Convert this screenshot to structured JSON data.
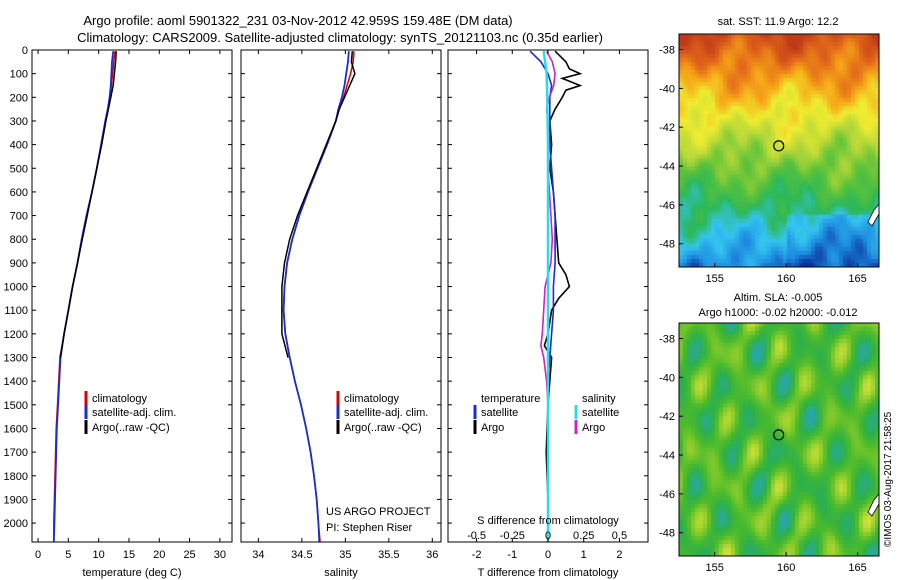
{
  "figure": {
    "title_line1": "Argo profile: aoml 5901322_231 03-Nov-2012 42.959S 159.48E (DM data)",
    "title_line2": "Climatology: CARS2009. Satellite-adjusted climatology: synTS_20121103.nc (0.35d earlier)",
    "side_stamp": "©IMOS 03-Aug-2017 21:58:25"
  },
  "colors": {
    "climatology": "#dd0000",
    "satellite": "#1a2bd8",
    "argo": "#000000",
    "salinity_satellite": "#22e0e8",
    "salinity_argo": "#d020c8"
  },
  "chart_data": [
    {
      "id": "temperature",
      "type": "line",
      "xlabel": "temperature (deg C)",
      "ylabel": "",
      "xlim": [
        -1,
        32
      ],
      "ylim": [
        2080,
        0
      ],
      "xticks": [
        0,
        5,
        10,
        15,
        20,
        25,
        30
      ],
      "yticks": [
        0,
        100,
        200,
        300,
        400,
        500,
        600,
        700,
        800,
        900,
        1000,
        1100,
        1200,
        1300,
        1400,
        1500,
        1600,
        1700,
        1800,
        1900,
        2000
      ],
      "depth": [
        5,
        50,
        100,
        150,
        200,
        250,
        300,
        400,
        500,
        600,
        700,
        800,
        900,
        1000,
        1100,
        1200,
        1300,
        1400,
        1500,
        1600,
        1700,
        1800,
        1900,
        2000,
        2080
      ],
      "series": [
        {
          "name": "climatology",
          "values": [
            12.7,
            12.5,
            12.3,
            12.1,
            11.9,
            11.5,
            11.1,
            10.4,
            9.7,
            8.9,
            8.0,
            7.2,
            6.5,
            5.7,
            5.0,
            4.3,
            3.6,
            3.4,
            3.2,
            3.0,
            2.9,
            2.8,
            2.7,
            2.6,
            2.6
          ]
        },
        {
          "name": "satellite-adj. clim.",
          "values": [
            12.4,
            12.2,
            12.1,
            12.0,
            11.8,
            11.5,
            11.1,
            10.4,
            9.7,
            8.9,
            8.0,
            7.2,
            6.5,
            5.7,
            5.0,
            4.3,
            3.7,
            3.5,
            3.3,
            3.1,
            3.0,
            2.9,
            2.8,
            2.7,
            2.6
          ]
        },
        {
          "name": "Argo(..raw -QC)",
          "values": [
            12.9,
            12.8,
            12.6,
            12.4,
            12.0,
            11.6,
            11.2,
            10.5,
            9.7,
            8.9,
            8.1,
            7.3,
            6.5,
            5.7,
            5.0,
            4.3,
            3.7
          ]
        }
      ],
      "legend": {
        "position": "bottom-right",
        "entries": [
          "climatology",
          "satellite-adj. clim.",
          "Argo(..raw -QC)"
        ]
      }
    },
    {
      "id": "salinity",
      "type": "line",
      "xlabel": "salinity",
      "ylabel": "",
      "xlim": [
        33.8,
        36.1
      ],
      "ylim": [
        2080,
        0
      ],
      "xticks": [
        34,
        34.5,
        35,
        35.5,
        36
      ],
      "xticklabels": [
        "34",
        "34.5",
        "35",
        "35.5",
        "36"
      ],
      "depth": [
        5,
        50,
        100,
        150,
        200,
        250,
        300,
        400,
        500,
        600,
        700,
        800,
        900,
        1000,
        1100,
        1200,
        1300,
        1400,
        1500,
        1600,
        1700,
        1800,
        1900,
        2000,
        2080
      ],
      "series": [
        {
          "name": "climatology",
          "values": [
            35.1,
            35.09,
            35.06,
            35.02,
            34.98,
            34.93,
            34.89,
            34.79,
            34.68,
            34.57,
            34.47,
            34.39,
            34.33,
            34.3,
            34.29,
            34.31,
            34.36,
            34.42,
            34.49,
            34.55,
            34.6,
            34.64,
            34.67,
            34.69,
            34.71
          ]
        },
        {
          "name": "satellite-adj. clim.",
          "values": [
            35.04,
            35.03,
            35.01,
            34.99,
            34.96,
            34.92,
            34.89,
            34.79,
            34.68,
            34.57,
            34.47,
            34.39,
            34.33,
            34.3,
            34.29,
            34.31,
            34.36,
            34.42,
            34.49,
            34.55,
            34.6,
            34.64,
            34.67,
            34.69,
            34.7
          ]
        },
        {
          "name": "Argo(..raw -QC)",
          "values": [
            35.08,
            35.07,
            35.11,
            35.05,
            34.99,
            34.93,
            34.89,
            34.78,
            34.67,
            34.56,
            34.45,
            34.36,
            34.3,
            34.27,
            34.27,
            34.27,
            34.34
          ]
        }
      ],
      "legend": {
        "position": "bottom-right",
        "entries": [
          "climatology",
          "satellite-adj. clim.",
          "Argo(..raw -QC)"
        ]
      },
      "annotation": [
        "US ARGO PROJECT",
        "PI: Stephen Riser"
      ]
    },
    {
      "id": "difference",
      "type": "line",
      "xlabel": "T difference from climatology",
      "xlabel_top": "S difference from climatology",
      "ylabel": "",
      "xlim": [
        -2.8,
        2.8
      ],
      "ylim": [
        2080,
        0
      ],
      "xticks": [
        -2,
        -1,
        0,
        1,
        2
      ],
      "xticklabels": [
        "-2",
        "-1",
        "0",
        "1",
        "2"
      ],
      "sxticks": [
        -0.5,
        -0.25,
        0,
        0.25,
        0.5
      ],
      "sxticklabels": [
        "-0.5",
        "-0.25",
        "0",
        "0.25",
        "0.5"
      ],
      "series": [
        {
          "name": "temperature satellite",
          "depth": [
            5,
            50,
            100,
            150,
            200,
            300,
            400,
            500,
            600,
            700,
            800,
            900,
            1000,
            1100,
            1200,
            1300,
            1400,
            1600,
            1800,
            2000,
            2080
          ],
          "values": [
            -0.5,
            -0.2,
            0.0,
            0.1,
            0.05,
            0.05,
            0.05,
            0.1,
            0.15,
            0.2,
            0.2,
            0.2,
            0.15,
            0.15,
            0.1,
            0.05,
            0.0,
            0.0,
            0.0,
            0.0,
            0.0
          ]
        },
        {
          "name": "temperature Argo",
          "depth": [
            5,
            50,
            80,
            100,
            120,
            150,
            170,
            200,
            250,
            300,
            400,
            500,
            600,
            700,
            800,
            900,
            950,
            1000,
            1050,
            1100,
            1150,
            1200,
            1250,
            1300,
            1400,
            1500,
            1700,
            1900
          ],
          "values": [
            0.2,
            0.5,
            0.6,
            0.9,
            0.4,
            0.9,
            0.5,
            0.4,
            0.2,
            0.05,
            0.1,
            0.05,
            0.15,
            0.2,
            0.25,
            0.3,
            0.5,
            0.6,
            0.3,
            0.1,
            0.05,
            0.0,
            -0.1,
            0.1,
            0.05,
            0.0,
            -0.05,
            0.0
          ]
        },
        {
          "name": "salinity satellite",
          "depth": [
            5,
            50,
            100,
            200,
            400,
            600,
            800,
            1000,
            1200,
            1400,
            1600,
            1800,
            2000,
            2080
          ],
          "values": [
            -0.03,
            -0.02,
            -0.01,
            -0.005,
            0.0,
            0.0,
            0.0,
            0.0,
            0.0,
            0.0,
            0.0,
            0.0,
            0.0,
            0.0
          ]
        },
        {
          "name": "salinity Argo",
          "depth": [
            5,
            50,
            100,
            150,
            200,
            250,
            300,
            500,
            700,
            800,
            900,
            950,
            1000,
            1100,
            1200,
            1250,
            1300,
            1400,
            1500
          ],
          "values": [
            -0.01,
            0.03,
            0.05,
            0.04,
            0.01,
            -0.01,
            0.0,
            0.0,
            0.02,
            0.03,
            0.02,
            0.0,
            -0.02,
            -0.03,
            -0.04,
            -0.05,
            -0.03,
            -0.01,
            0.0
          ]
        }
      ],
      "legend": {
        "groups": [
          {
            "heading": "temperature",
            "entries": [
              "satellite",
              "Argo"
            ]
          },
          {
            "heading": "salinity",
            "entries": [
              "satellite",
              "Argo"
            ]
          }
        ]
      }
    },
    {
      "id": "sst_map",
      "type": "heatmap",
      "title": "sat. SST: 11.9 Argo: 12.2",
      "xlim": [
        152.5,
        166.5
      ],
      "ylim": [
        -49.2,
        -37.2
      ],
      "xticks": [
        155,
        160,
        165
      ],
      "xticklabels": [
        "155",
        "160",
        "165"
      ],
      "yticks": [
        -38,
        -40,
        -42,
        -44,
        -46,
        -48
      ],
      "yticklabels": [
        "-38",
        "-40",
        "-42",
        "-44",
        "-46",
        "-48"
      ],
      "marker": [
        159.48,
        -42.96
      ],
      "colormap": [
        "#0a2f9e",
        "#1e8ee0",
        "#34c4f0",
        "#2cb858",
        "#5ec23a",
        "#b8d838",
        "#f0ec30",
        "#f6a418",
        "#e0641a",
        "#c03a18"
      ]
    },
    {
      "id": "sla_map",
      "type": "heatmap",
      "title_line1": "Altim. SLA: -0.005",
      "title_line2": "Argo h1000: -0.02 h2000: -0.012",
      "xlim": [
        152.5,
        166.5
      ],
      "ylim": [
        -49.2,
        -37.2
      ],
      "xticks": [
        155,
        160,
        165
      ],
      "xticklabels": [
        "155",
        "160",
        "165"
      ],
      "yticks": [
        -38,
        -40,
        -42,
        -44,
        -46,
        -48
      ],
      "yticklabels": [
        "-38",
        "-40",
        "-42",
        "-44",
        "-46",
        "-48"
      ],
      "marker": [
        159.48,
        -42.96
      ],
      "colormap": [
        "#1f9ad0",
        "#2aa8a0",
        "#2cb04a",
        "#4cba2c",
        "#8ccc2c",
        "#d0e23a",
        "#eef06a"
      ]
    }
  ]
}
